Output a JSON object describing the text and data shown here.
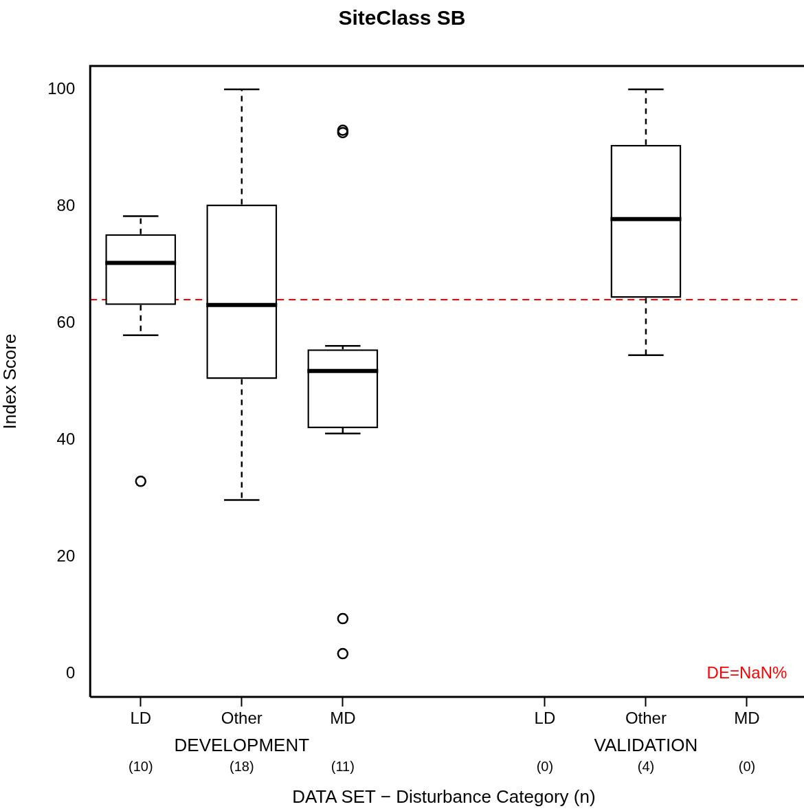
{
  "chart_data": {
    "type": "box",
    "title": "SiteClass SB",
    "xlabel": "DATA SET − Disturbance Category (n)",
    "ylabel": "Index Score",
    "categories": [
      "LD",
      "Other",
      "MD",
      null,
      "LD",
      "Other",
      "MD"
    ],
    "boxes": [
      {
        "low": 57.9,
        "q1": 63.1,
        "median": 70.3,
        "q3": 75.2,
        "high": 78.3,
        "outliers": [
          32.9
        ]
      },
      {
        "low": 29.7,
        "q1": 50.4,
        "median": 63.1,
        "q3": 80.3,
        "high": 100
      },
      {
        "low": 41.1,
        "q1": 42.0,
        "median": 51.8,
        "q3": 55.5,
        "high": 56.1,
        "outliers": [
          93.0,
          92.6,
          9.4,
          3.4
        ]
      },
      null,
      null,
      {
        "low": 54.5,
        "q1": 64.3,
        "median": 77.8,
        "q3": 90.5,
        "high": 100
      },
      null
    ],
    "color": "#000000",
    "marker": "circle",
    "ylim": [
      -4,
      104
    ],
    "yticks": [
      0,
      20,
      40,
      60,
      80,
      100
    ],
    "ref_lines": [
      {
        "axis": "y",
        "value": 64,
        "color": "#ff0000",
        "line_style": "dashed"
      }
    ],
    "annotations": [
      "DEVELOPMENT",
      "VALIDATION",
      "(10)",
      "(18)",
      "(11)",
      "(0)",
      "(4)",
      "(0)",
      "DE=NaN%"
    ]
  }
}
